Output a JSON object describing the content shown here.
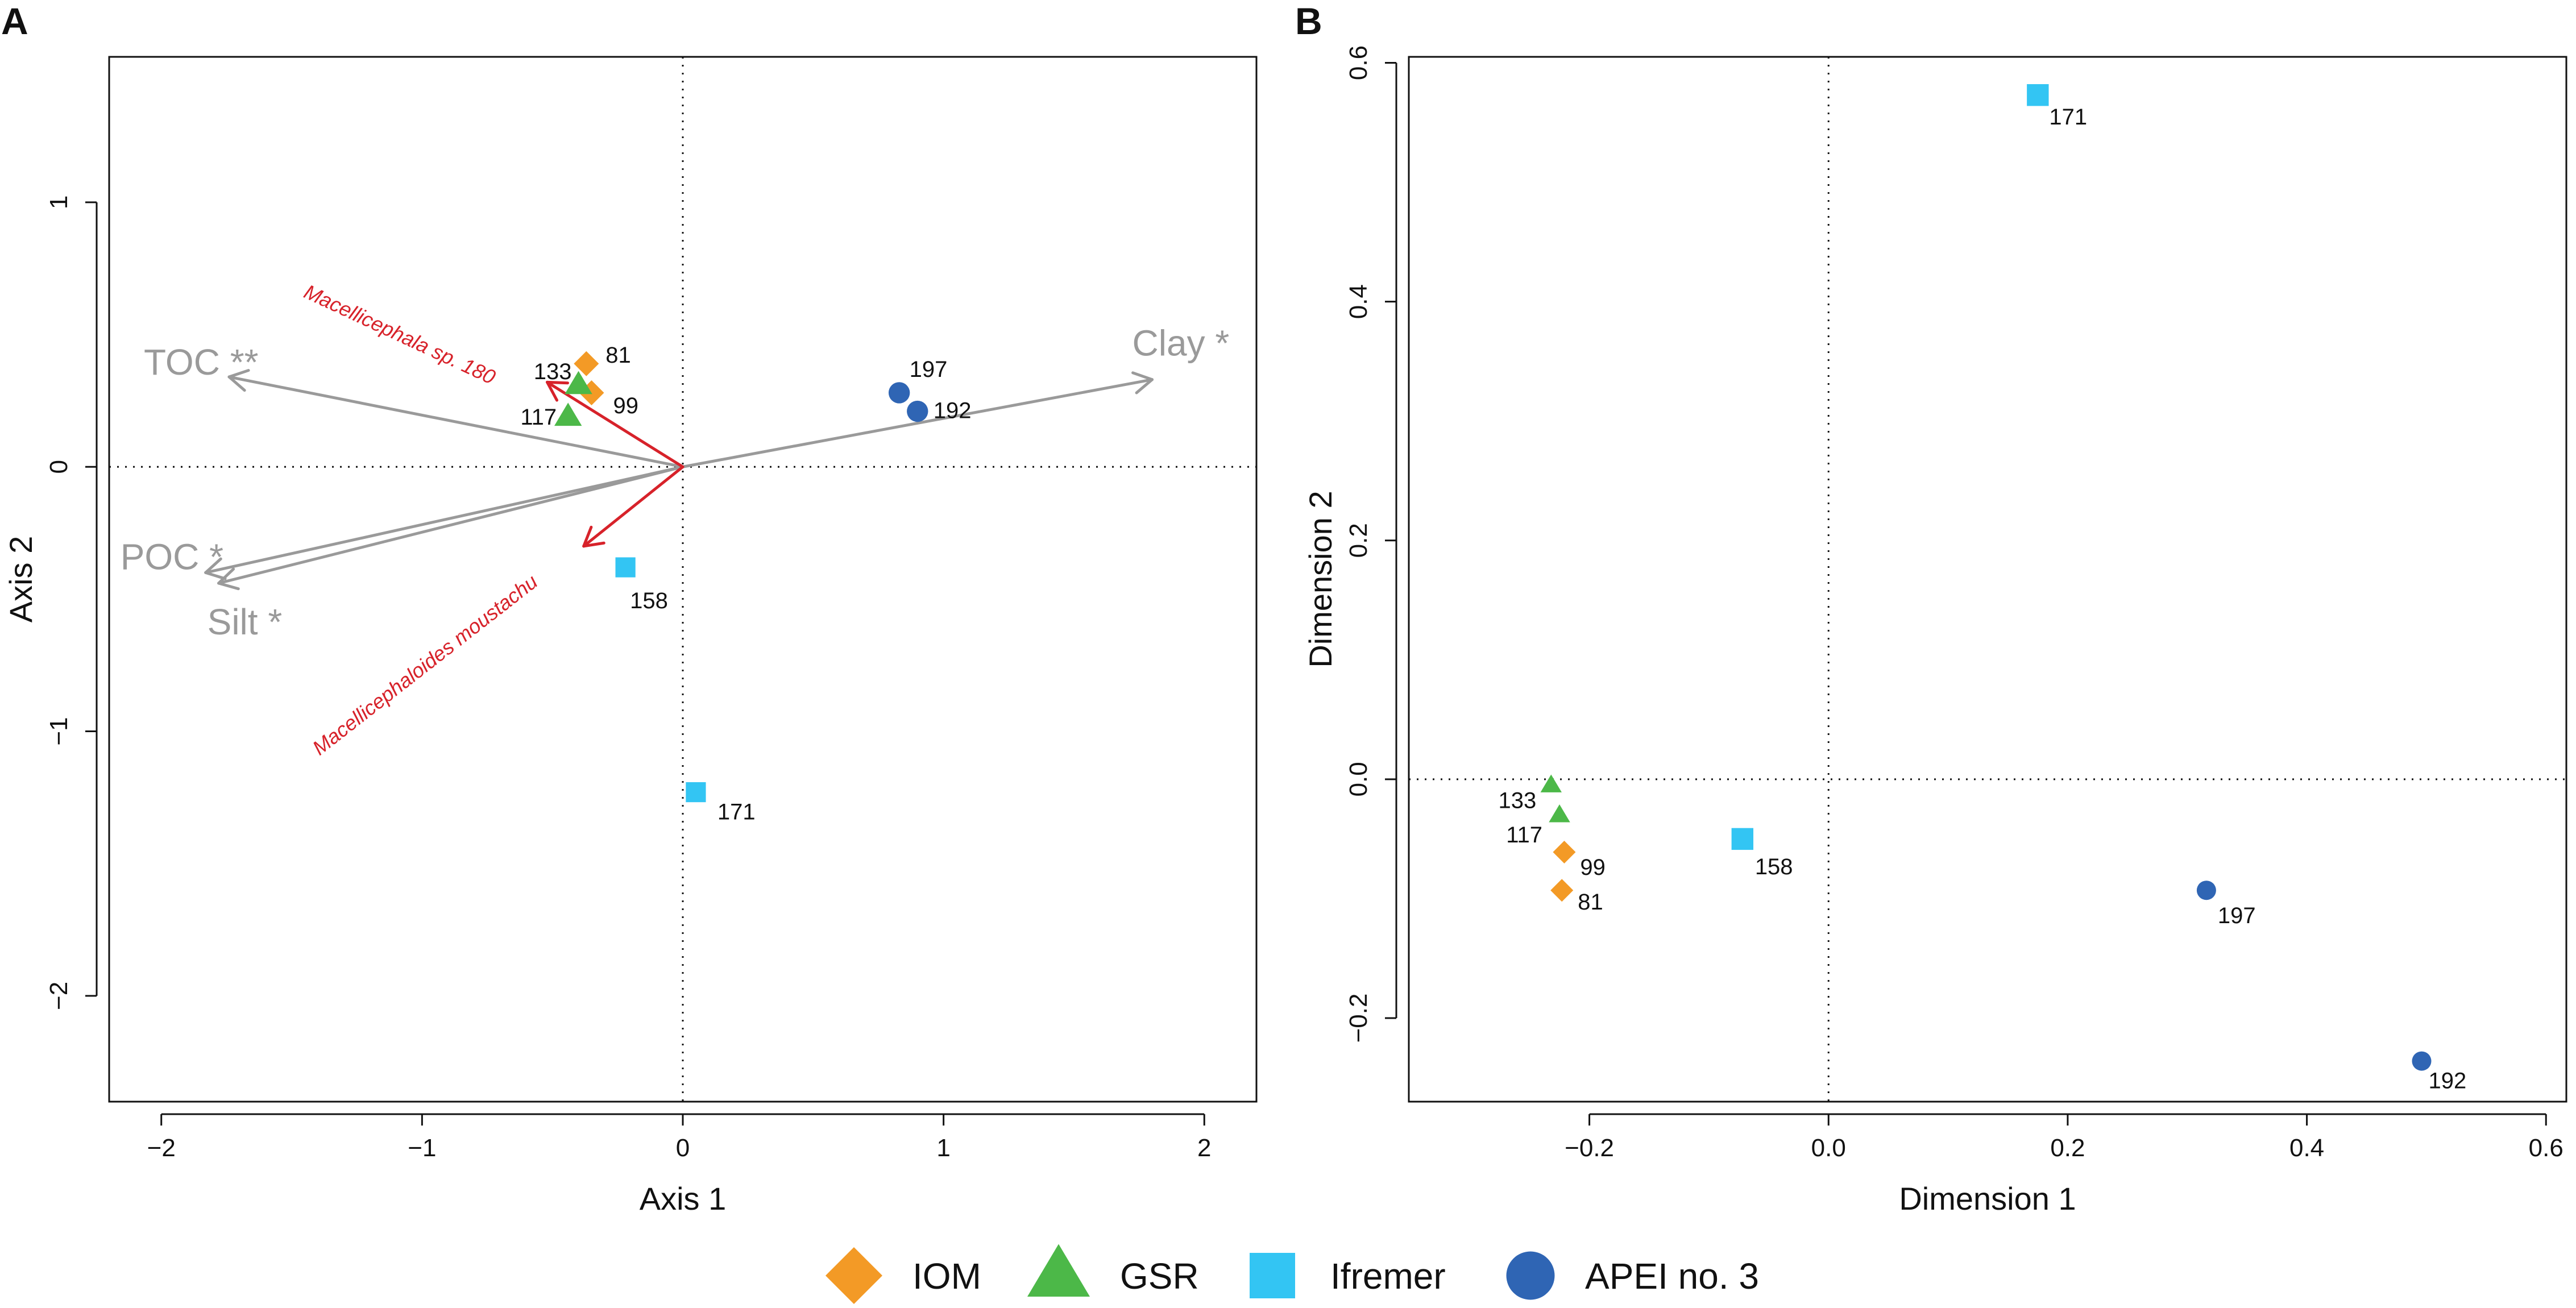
{
  "chart_data": [
    {
      "panel": "A",
      "type": "scatter",
      "xlabel": "Axis 1",
      "ylabel": "Axis 2",
      "xlim": [
        -2.2,
        2.2
      ],
      "ylim": [
        -2.4,
        1.55
      ],
      "xticks": [
        -2,
        -1,
        0,
        1,
        2
      ],
      "yticks": [
        -2,
        -1,
        0,
        1
      ],
      "xtick_labels": [
        "−2",
        "−1",
        "0",
        "1",
        "2"
      ],
      "ytick_labels": [
        "−2",
        "−1",
        "0",
        "1"
      ],
      "reference_lines": "dotted lines at x = 0 and y = 0",
      "points": [
        {
          "label": "81",
          "group": "IOM",
          "x": -0.37,
          "y": 0.39
        },
        {
          "label": "99",
          "group": "IOM",
          "x": -0.35,
          "y": 0.28
        },
        {
          "label": "133",
          "group": "GSR",
          "x": -0.4,
          "y": 0.31
        },
        {
          "label": "117",
          "group": "GSR",
          "x": -0.44,
          "y": 0.19
        },
        {
          "label": "197",
          "group": "APEI no. 3",
          "x": 0.83,
          "y": 0.28
        },
        {
          "label": "192",
          "group": "APEI no. 3",
          "x": 0.9,
          "y": 0.21
        },
        {
          "label": "158",
          "group": "Ifremer",
          "x": -0.22,
          "y": -0.38
        },
        {
          "label": "171",
          "group": "Ifremer",
          "x": 0.05,
          "y": -1.23
        }
      ],
      "environment_vectors": [
        {
          "label": "TOC **",
          "x": -1.74,
          "y": 0.34
        },
        {
          "label": "Clay *",
          "x": 1.8,
          "y": 0.33
        },
        {
          "label": "POC *",
          "x": -1.83,
          "y": -0.4
        },
        {
          "label": "Silt *",
          "x": -1.78,
          "y": -0.44
        }
      ],
      "species_vectors": [
        {
          "label": "Macellicephala sp. 180",
          "x": -0.52,
          "y": 0.32
        },
        {
          "label": "Macellicephaloides moustachu",
          "x": -0.38,
          "y": -0.3
        }
      ]
    },
    {
      "panel": "B",
      "type": "scatter",
      "xlabel": "Dimension 1",
      "ylabel": "Dimension 2",
      "xlim": [
        -0.351,
        0.617
      ],
      "ylim": [
        -0.27,
        0.605
      ],
      "xticks": [
        -0.2,
        0.0,
        0.2,
        0.4,
        0.6
      ],
      "yticks": [
        -0.2,
        0.0,
        0.2,
        0.4,
        0.6
      ],
      "xtick_labels": [
        "−0.2",
        "0.0",
        "0.2",
        "0.4",
        "0.6"
      ],
      "ytick_labels": [
        "−0.2",
        "0.0",
        "0.2",
        "0.4",
        "0.6"
      ],
      "reference_lines": "dotted lines at x = 0 and y = 0",
      "points": [
        {
          "label": "171",
          "group": "Ifremer",
          "x": 0.175,
          "y": 0.573
        },
        {
          "label": "158",
          "group": "Ifremer",
          "x": -0.072,
          "y": -0.05
        },
        {
          "label": "133",
          "group": "GSR",
          "x": -0.232,
          "y": -0.005
        },
        {
          "label": "117",
          "group": "GSR",
          "x": -0.225,
          "y": -0.03
        },
        {
          "label": "99",
          "group": "IOM",
          "x": -0.221,
          "y": -0.061
        },
        {
          "label": "81",
          "group": "IOM",
          "x": -0.223,
          "y": -0.093
        },
        {
          "label": "197",
          "group": "APEI no. 3",
          "x": 0.316,
          "y": -0.093
        },
        {
          "label": "192",
          "group": "APEI no. 3",
          "x": 0.496,
          "y": -0.236
        }
      ]
    }
  ],
  "legend": [
    {
      "label": "IOM",
      "shape": "diamond",
      "color": "#f39a26"
    },
    {
      "label": "GSR",
      "shape": "triangle",
      "color": "#4cb848"
    },
    {
      "label": "Ifremer",
      "shape": "square",
      "color": "#33c5f3"
    },
    {
      "label": "APEI no. 3",
      "shape": "circle",
      "color": "#2f65b4"
    }
  ],
  "colors": {
    "environment_vector": "#9a9a9a",
    "species_vector": "#d7222a",
    "axis": "#111111"
  }
}
